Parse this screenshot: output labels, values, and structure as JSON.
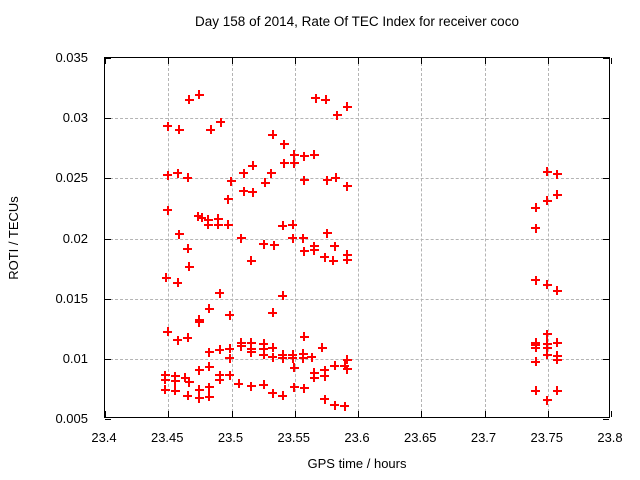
{
  "title": "Day 158 of 2014, Rate Of TEC Index for receiver coco",
  "colors": {
    "marker": "#ff0000",
    "grid": "#b4b4b4",
    "frame": "#000000",
    "background": "#ffffff",
    "text": "#000000"
  },
  "chart_data": {
    "type": "scatter",
    "title": "Day 158 of 2014, Rate Of TEC Index for receiver coco",
    "xlabel": "GPS time / hours",
    "ylabel": "ROTI / TECUs",
    "xlim": [
      23.4,
      23.8
    ],
    "ylim": [
      0.005,
      0.035
    ],
    "xticks": [
      "23.4",
      "23.45",
      "23.5",
      "23.55",
      "23.6",
      "23.65",
      "23.7",
      "23.75",
      "23.8"
    ],
    "yticks": [
      "0.005",
      "0.01",
      "0.015",
      "0.02",
      "0.025",
      "0.03",
      "0.035"
    ],
    "grid": true,
    "legend": "none",
    "marker": "plus",
    "series": [
      {
        "name": "ROTI",
        "points": [
          [
            23.45,
            0.0293
          ],
          [
            23.459,
            0.029
          ],
          [
            23.467,
            0.0315
          ],
          [
            23.475,
            0.0319
          ],
          [
            23.484,
            0.029
          ],
          [
            23.492,
            0.0296
          ],
          [
            23.567,
            0.0316
          ],
          [
            23.575,
            0.0315
          ],
          [
            23.584,
            0.0302
          ],
          [
            23.592,
            0.0309
          ],
          [
            23.45,
            0.0252
          ],
          [
            23.458,
            0.0254
          ],
          [
            23.466,
            0.025
          ],
          [
            23.5,
            0.0247
          ],
          [
            23.51,
            0.0254
          ],
          [
            23.517,
            0.026
          ],
          [
            23.527,
            0.0246
          ],
          [
            23.532,
            0.0254
          ],
          [
            23.533,
            0.0286
          ],
          [
            23.542,
            0.0278
          ],
          [
            23.542,
            0.0262
          ],
          [
            23.55,
            0.0269
          ],
          [
            23.55,
            0.0262
          ],
          [
            23.558,
            0.0268
          ],
          [
            23.558,
            0.0248
          ],
          [
            23.566,
            0.0269
          ],
          [
            23.576,
            0.0248
          ],
          [
            23.583,
            0.025
          ],
          [
            23.592,
            0.0243
          ],
          [
            23.45,
            0.0223
          ],
          [
            23.459,
            0.0203
          ],
          [
            23.474,
            0.0218
          ],
          [
            23.477,
            0.0217
          ],
          [
            23.482,
            0.0215
          ],
          [
            23.482,
            0.0211
          ],
          [
            23.49,
            0.0216
          ],
          [
            23.49,
            0.0211
          ],
          [
            23.498,
            0.0232
          ],
          [
            23.498,
            0.0211
          ],
          [
            23.508,
            0.02
          ],
          [
            23.51,
            0.0239
          ],
          [
            23.517,
            0.0238
          ],
          [
            23.541,
            0.021
          ],
          [
            23.549,
            0.0211
          ],
          [
            23.549,
            0.02
          ],
          [
            23.557,
            0.02
          ],
          [
            23.576,
            0.0204
          ],
          [
            23.449,
            0.0167
          ],
          [
            23.458,
            0.0163
          ],
          [
            23.466,
            0.0191
          ],
          [
            23.467,
            0.0176
          ],
          [
            23.491,
            0.0154
          ],
          [
            23.516,
            0.0181
          ],
          [
            23.526,
            0.0195
          ],
          [
            23.534,
            0.0194
          ],
          [
            23.541,
            0.0152
          ],
          [
            23.558,
            0.0189
          ],
          [
            23.566,
            0.0193
          ],
          [
            23.566,
            0.019
          ],
          [
            23.574,
            0.0184
          ],
          [
            23.581,
            0.0181
          ],
          [
            23.582,
            0.0193
          ],
          [
            23.592,
            0.0186
          ],
          [
            23.592,
            0.0182
          ],
          [
            23.45,
            0.0122
          ],
          [
            23.458,
            0.0115
          ],
          [
            23.466,
            0.0117
          ],
          [
            23.475,
            0.0132
          ],
          [
            23.475,
            0.013
          ],
          [
            23.483,
            0.0141
          ],
          [
            23.483,
            0.0105
          ],
          [
            23.491,
            0.0107
          ],
          [
            23.499,
            0.0136
          ],
          [
            23.499,
            0.0108
          ],
          [
            23.499,
            0.01
          ],
          [
            23.508,
            0.0113
          ],
          [
            23.508,
            0.011
          ],
          [
            23.516,
            0.0113
          ],
          [
            23.516,
            0.0108
          ],
          [
            23.516,
            0.0105
          ],
          [
            23.526,
            0.0112
          ],
          [
            23.526,
            0.0108
          ],
          [
            23.526,
            0.0103
          ],
          [
            23.533,
            0.0138
          ],
          [
            23.533,
            0.0109
          ],
          [
            23.533,
            0.0101
          ],
          [
            23.541,
            0.0103
          ],
          [
            23.541,
            0.01
          ],
          [
            23.549,
            0.0103
          ],
          [
            23.549,
            0.01
          ],
          [
            23.557,
            0.0104
          ],
          [
            23.557,
            0.01
          ],
          [
            23.558,
            0.0118
          ],
          [
            23.564,
            0.0101
          ],
          [
            23.572,
            0.0109
          ],
          [
            23.448,
            0.0086
          ],
          [
            23.448,
            0.0082
          ],
          [
            23.448,
            0.0074
          ],
          [
            23.456,
            0.0085
          ],
          [
            23.456,
            0.0081
          ],
          [
            23.456,
            0.0073
          ],
          [
            23.464,
            0.0084
          ],
          [
            23.466,
            0.0069
          ],
          [
            23.467,
            0.008
          ],
          [
            23.475,
            0.009
          ],
          [
            23.475,
            0.0074
          ],
          [
            23.475,
            0.0067
          ],
          [
            23.483,
            0.0093
          ],
          [
            23.483,
            0.0076
          ],
          [
            23.483,
            0.0068
          ],
          [
            23.491,
            0.0086
          ],
          [
            23.491,
            0.0082
          ],
          [
            23.499,
            0.0086
          ],
          [
            23.506,
            0.0079
          ],
          [
            23.516,
            0.0077
          ],
          [
            23.526,
            0.0078
          ],
          [
            23.533,
            0.0071
          ],
          [
            23.541,
            0.0069
          ],
          [
            23.55,
            0.0092
          ],
          [
            23.55,
            0.0076
          ],
          [
            23.558,
            0.0075
          ],
          [
            23.566,
            0.0088
          ],
          [
            23.566,
            0.0084
          ],
          [
            23.574,
            0.009
          ],
          [
            23.574,
            0.0085
          ],
          [
            23.574,
            0.0066
          ],
          [
            23.582,
            0.0094
          ],
          [
            23.582,
            0.0061
          ],
          [
            23.59,
            0.0094
          ],
          [
            23.59,
            0.006
          ],
          [
            23.592,
            0.0099
          ],
          [
            23.592,
            0.0091
          ],
          [
            23.741,
            0.0225
          ],
          [
            23.741,
            0.0208
          ],
          [
            23.741,
            0.0165
          ],
          [
            23.741,
            0.0113
          ],
          [
            23.741,
            0.0111
          ],
          [
            23.741,
            0.0109
          ],
          [
            23.741,
            0.0097
          ],
          [
            23.741,
            0.0073
          ],
          [
            23.75,
            0.0255
          ],
          [
            23.75,
            0.0231
          ],
          [
            23.75,
            0.0161
          ],
          [
            23.75,
            0.012
          ],
          [
            23.75,
            0.0112
          ],
          [
            23.75,
            0.0109
          ],
          [
            23.75,
            0.0103
          ],
          [
            23.75,
            0.0065
          ],
          [
            23.758,
            0.0253
          ],
          [
            23.758,
            0.0236
          ],
          [
            23.758,
            0.0156
          ],
          [
            23.758,
            0.0113
          ],
          [
            23.758,
            0.0102
          ],
          [
            23.758,
            0.0099
          ],
          [
            23.758,
            0.0073
          ]
        ]
      }
    ]
  }
}
